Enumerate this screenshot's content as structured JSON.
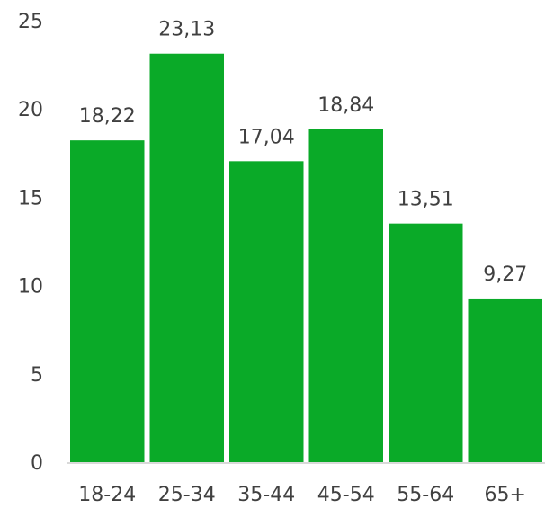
{
  "chart_data": {
    "type": "bar",
    "categories": [
      "18-24",
      "25-34",
      "35-44",
      "45-54",
      "55-64",
      "65+"
    ],
    "values": [
      18.22,
      23.13,
      17.04,
      18.84,
      13.51,
      9.27
    ],
    "value_labels": [
      "18,22",
      "23,13",
      "17,04",
      "18,84",
      "13,51",
      "9,27"
    ],
    "title": "",
    "xlabel": "",
    "ylabel": "",
    "ylim": [
      0,
      25
    ],
    "yticks": [
      "0",
      "5",
      "10",
      "15",
      "20",
      "25"
    ],
    "grid": false,
    "bar_color": "#0aaa28",
    "axis_color": "#d9d9d9",
    "text_color": "#404040"
  }
}
